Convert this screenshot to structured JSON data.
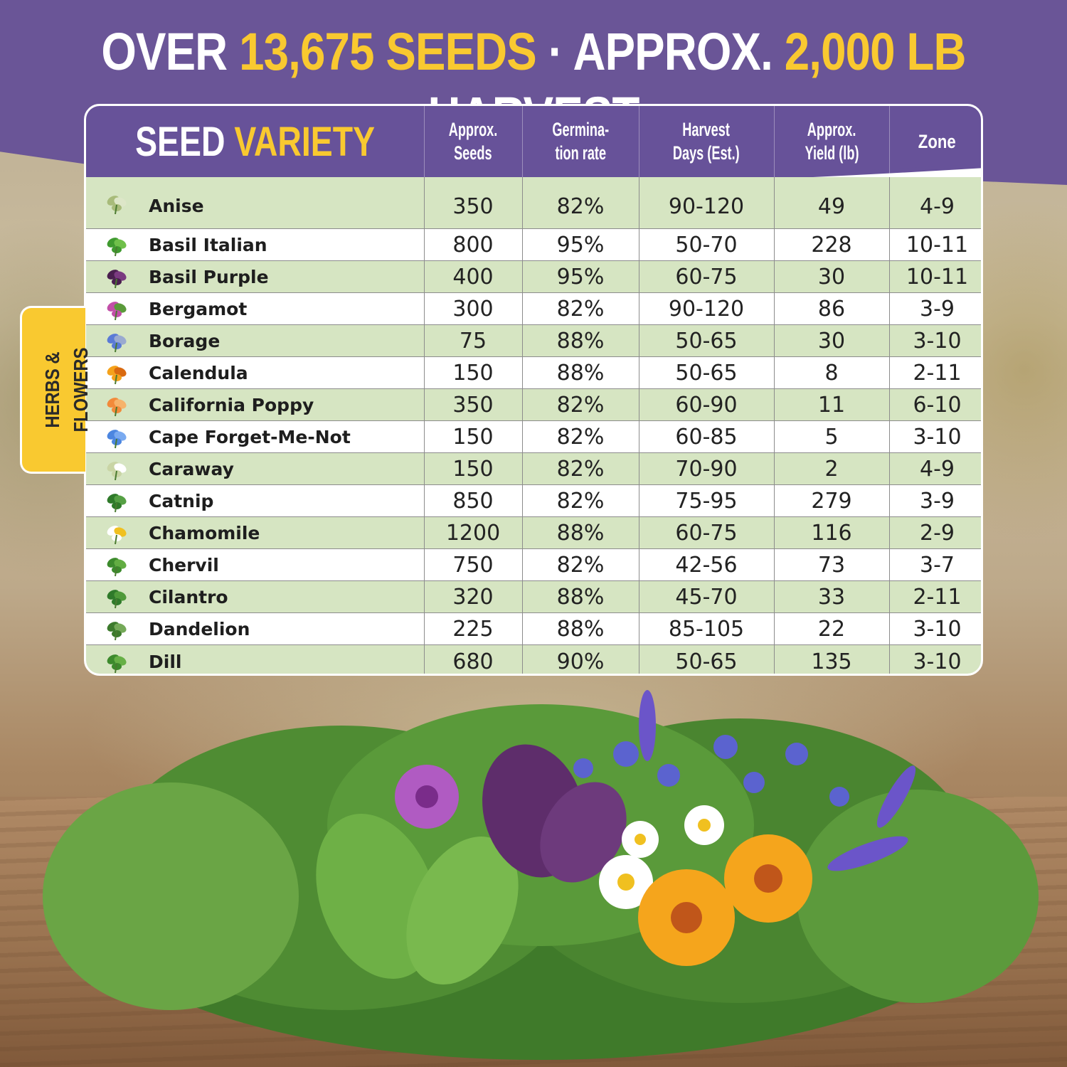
{
  "headline": {
    "part1": "OVER ",
    "seeds_count": "13,675 SEEDS",
    "separator": " · APPROX. ",
    "harvest_amount": "2,000 LB",
    "part2": " HARVEST"
  },
  "table": {
    "title_white": "SEED ",
    "title_yellow": "VARIETY",
    "headers": {
      "seeds_1": "Approx.",
      "seeds_2": "Seeds",
      "germ_1": "Germina-",
      "germ_2": "tion rate",
      "harvest_1": "Harvest",
      "harvest_2": "Days (Est.)",
      "yield_1": "Approx.",
      "yield_2": "Yield (lb)",
      "zone": "Zone"
    },
    "rows": [
      {
        "name": "Anise",
        "seeds": "350",
        "germ": "82%",
        "days": "90-120",
        "yield": "49",
        "zone": "4-9",
        "icon": "anise-icon"
      },
      {
        "name": "Basil Italian",
        "seeds": "800",
        "germ": "95%",
        "days": "50-70",
        "yield": "228",
        "zone": "10-11",
        "icon": "basil-icon"
      },
      {
        "name": "Basil Purple",
        "seeds": "400",
        "germ": "95%",
        "days": "60-75",
        "yield": "30",
        "zone": "10-11",
        "icon": "purple-basil-icon"
      },
      {
        "name": "Bergamot",
        "seeds": "300",
        "germ": "82%",
        "days": "90-120",
        "yield": "86",
        "zone": "3-9",
        "icon": "bergamot-icon"
      },
      {
        "name": "Borage",
        "seeds": "75",
        "germ": "88%",
        "days": "50-65",
        "yield": "30",
        "zone": "3-10",
        "icon": "borage-icon"
      },
      {
        "name": "Calendula",
        "seeds": "150",
        "germ": "88%",
        "days": "50-65",
        "yield": "8",
        "zone": "2-11",
        "icon": "calendula-icon"
      },
      {
        "name": "California Poppy",
        "seeds": "350",
        "germ": "82%",
        "days": "60-90",
        "yield": "11",
        "zone": "6-10",
        "icon": "poppy-icon"
      },
      {
        "name": "Cape Forget-Me-Not",
        "seeds": "150",
        "germ": "82%",
        "days": "60-85",
        "yield": "5",
        "zone": "3-10",
        "icon": "forget-me-not-icon"
      },
      {
        "name": "Caraway",
        "seeds": "150",
        "germ": "82%",
        "days": "70-90",
        "yield": "2",
        "zone": "4-9",
        "icon": "caraway-icon"
      },
      {
        "name": "Catnip",
        "seeds": "850",
        "germ": "82%",
        "days": "75-95",
        "yield": "279",
        "zone": "3-9",
        "icon": "catnip-icon"
      },
      {
        "name": "Chamomile",
        "seeds": "1200",
        "germ": "88%",
        "days": "60-75",
        "yield": "116",
        "zone": "2-9",
        "icon": "chamomile-icon"
      },
      {
        "name": "Chervil",
        "seeds": "750",
        "germ": "82%",
        "days": "42-56",
        "yield": "73",
        "zone": "3-7",
        "icon": "chervil-icon"
      },
      {
        "name": "Cilantro",
        "seeds": "320",
        "germ": "88%",
        "days": "45-70",
        "yield": "33",
        "zone": "2-11",
        "icon": "cilantro-icon"
      },
      {
        "name": "Dandelion",
        "seeds": "225",
        "germ": "88%",
        "days": "85-105",
        "yield": "22",
        "zone": "3-10",
        "icon": "dandelion-icon"
      },
      {
        "name": "Dill",
        "seeds": "680",
        "germ": "90%",
        "days": "50-65",
        "yield": "135",
        "zone": "3-10",
        "icon": "dill-icon"
      }
    ]
  },
  "side_tab": {
    "label": "HERBS & FLOWERS"
  },
  "colors": {
    "purple": "#675299",
    "yellow": "#f9c930",
    "row_green": "#d6e5c2",
    "row_white": "#ffffff"
  }
}
